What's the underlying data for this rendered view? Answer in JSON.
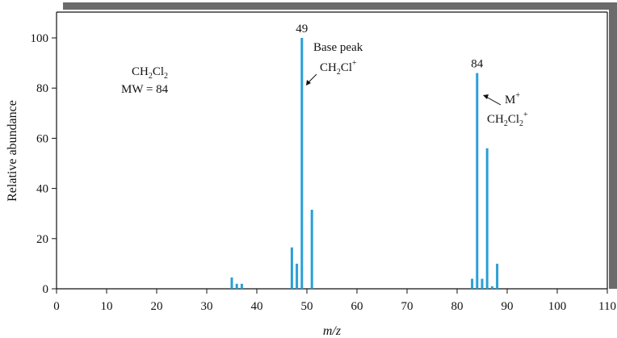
{
  "chart_data": {
    "type": "bar",
    "xlabel": "m/z",
    "ylabel": "Relative abundance",
    "xlim": [
      0,
      110
    ],
    "ylim": [
      0,
      100
    ],
    "xticks": [
      "0",
      "10",
      "20",
      "30",
      "40",
      "50",
      "60",
      "70",
      "80",
      "90",
      "100",
      "110"
    ],
    "yticks": [
      "0",
      "20",
      "40",
      "60",
      "80",
      "100"
    ],
    "grid": false,
    "bar_color": "#2a9fd6",
    "peaks": [
      {
        "x": 35,
        "y": 4.5
      },
      {
        "x": 36,
        "y": 2
      },
      {
        "x": 37,
        "y": 2
      },
      {
        "x": 47,
        "y": 16.5
      },
      {
        "x": 48,
        "y": 10
      },
      {
        "x": 49,
        "y": 100
      },
      {
        "x": 51,
        "y": 31.5
      },
      {
        "x": 83,
        "y": 4
      },
      {
        "x": 84,
        "y": 86
      },
      {
        "x": 85,
        "y": 4
      },
      {
        "x": 86,
        "y": 56
      },
      {
        "x": 87,
        "y": 1
      },
      {
        "x": 88,
        "y": 10
      }
    ],
    "peak_labels": [
      {
        "x": 49,
        "text": "49"
      },
      {
        "x": 84,
        "text": "84"
      }
    ],
    "annotations": {
      "compound_formula": {
        "base": "CH",
        "sub1": "2",
        "mid": "Cl",
        "sub2": "2"
      },
      "molecular_weight": "MW = 84",
      "base_peak_title": "Base peak",
      "base_peak_ion": {
        "base": "CH",
        "sub1": "2",
        "mid": "Cl",
        "sup": "+"
      },
      "molecular_ion_title": {
        "base": "M",
        "sup": "+"
      },
      "molecular_ion_formula": {
        "base": "CH",
        "sub1": "2",
        "mid": "Cl",
        "sub2": "2",
        "sup": "+"
      }
    }
  }
}
